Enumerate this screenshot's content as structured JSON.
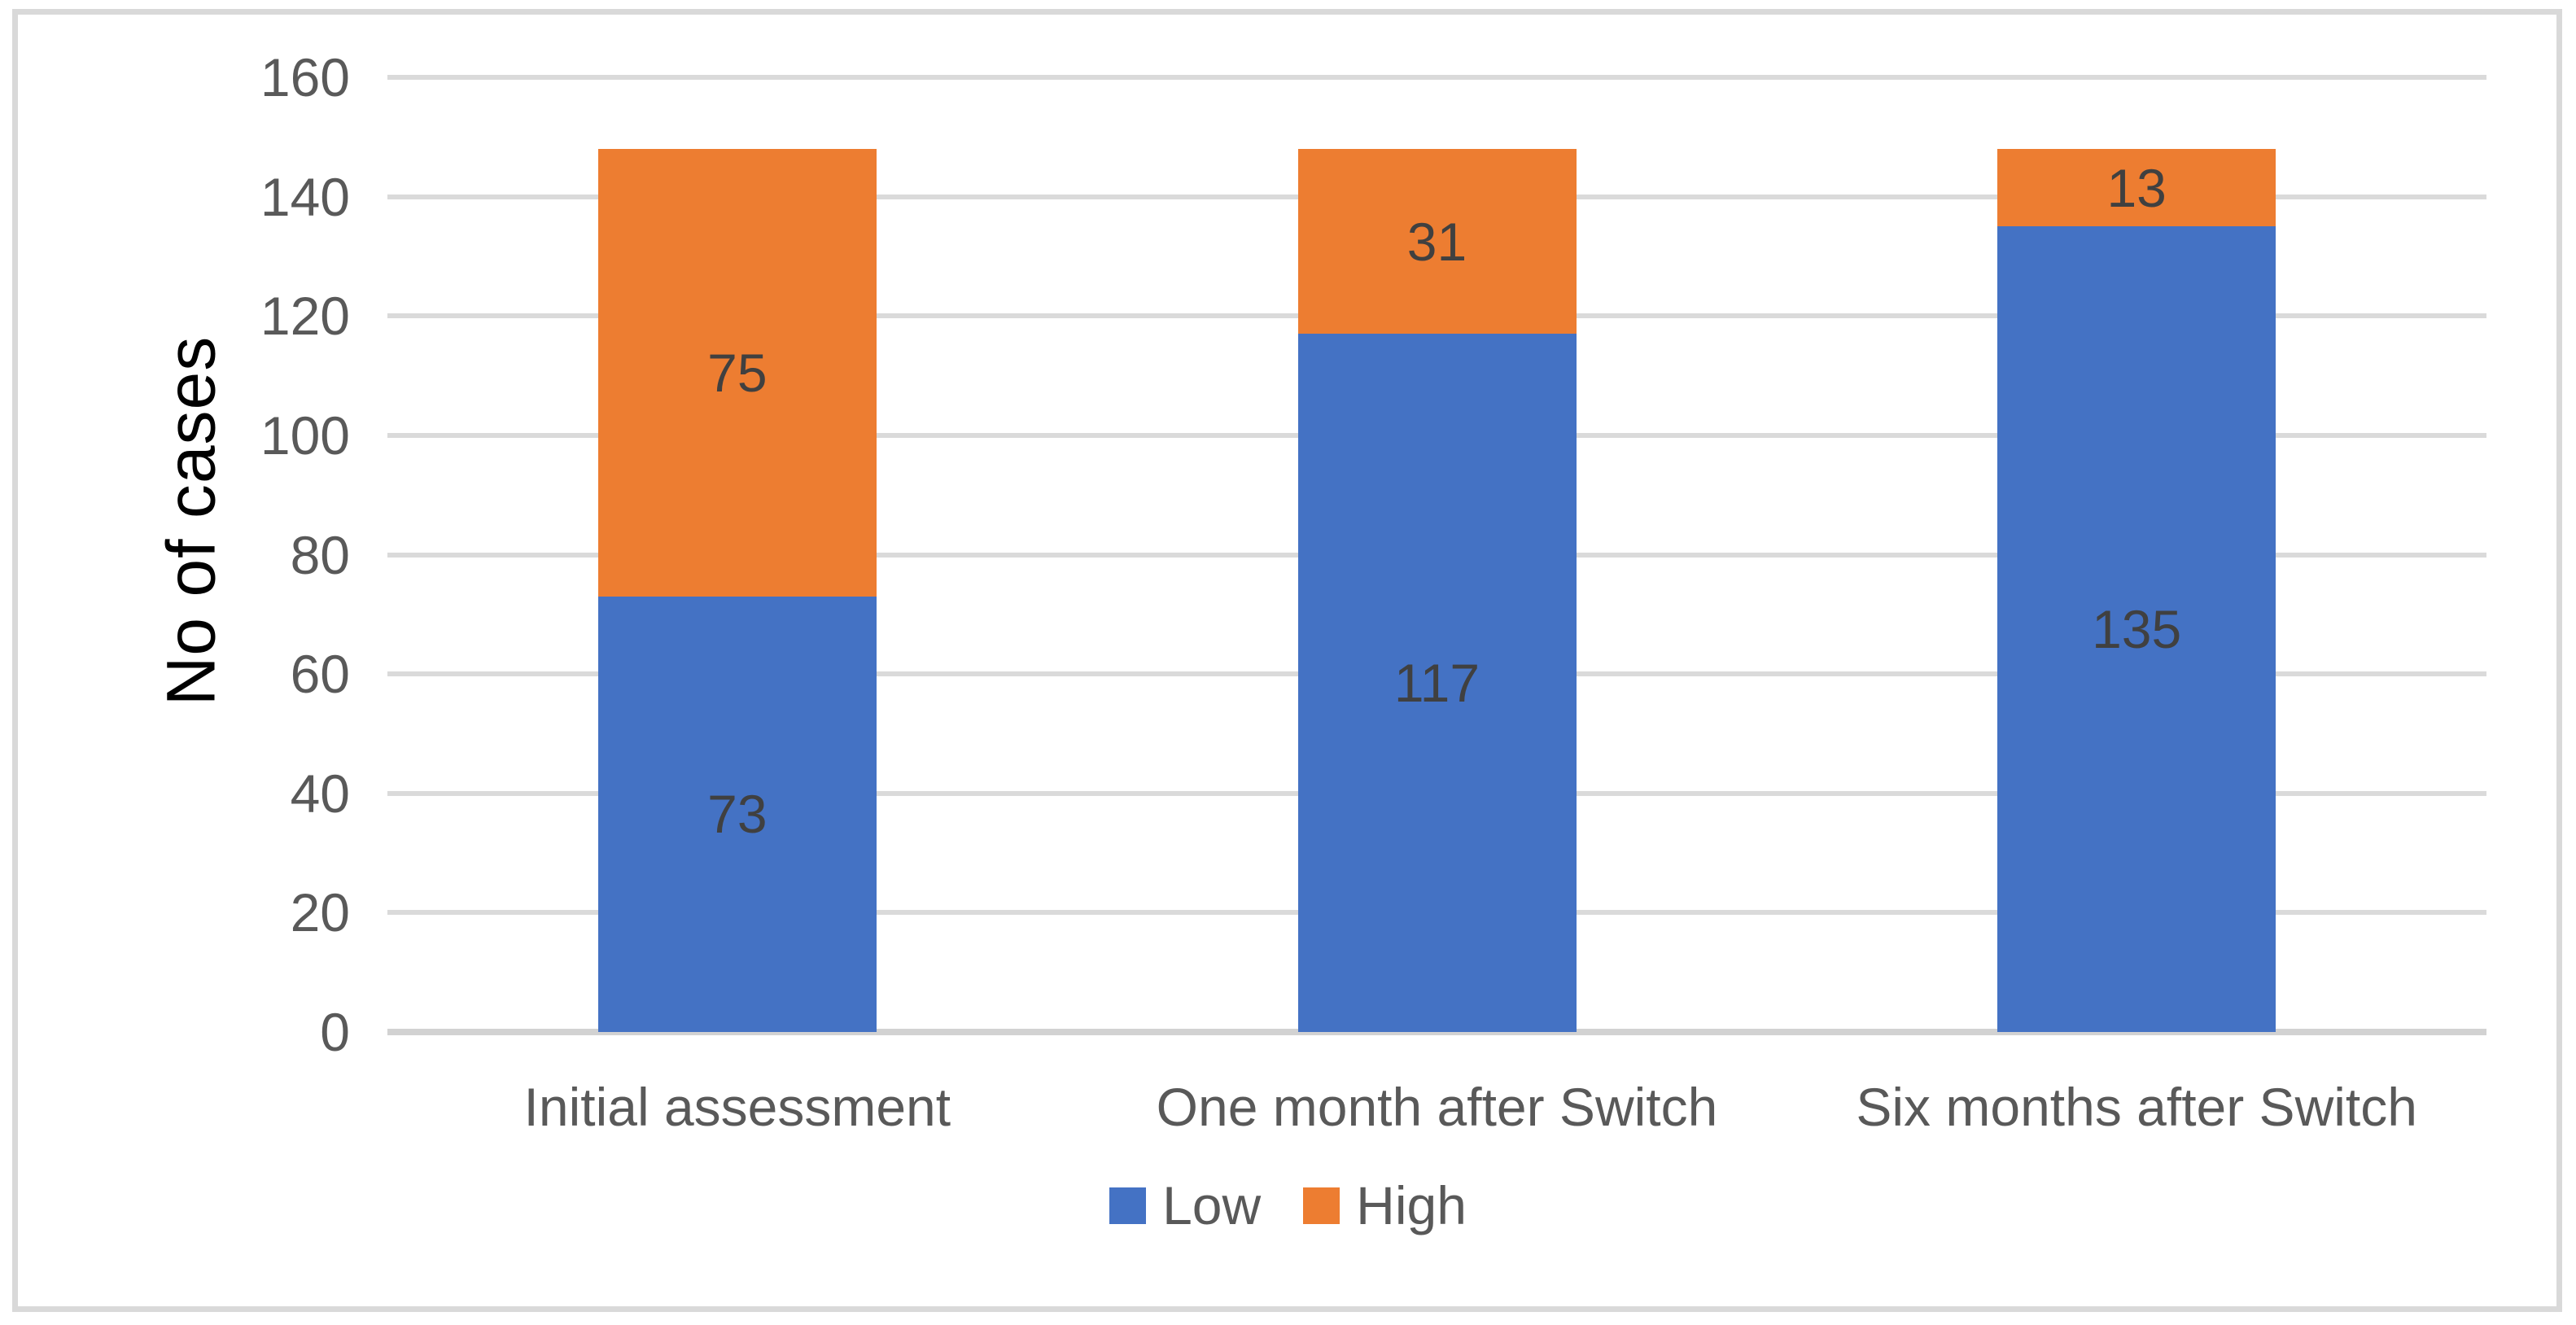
{
  "figure": {
    "background": "#FFFFFF",
    "border_color": "#D9D9D9"
  },
  "chart_data": {
    "type": "bar",
    "stacked": true,
    "title": "",
    "xlabel": "",
    "ylabel": "No of cases",
    "categories": [
      "Initial assessment",
      "One month after Switch",
      "Six months after Switch"
    ],
    "series": [
      {
        "name": "Low",
        "color": "#4472C4",
        "values": [
          73,
          117,
          135
        ]
      },
      {
        "name": "High",
        "color": "#ED7D31",
        "values": [
          75,
          31,
          13
        ]
      }
    ],
    "data_labels": {
      "Low": [
        73,
        117,
        135
      ],
      "High": [
        75,
        31,
        13
      ]
    },
    "ylim": [
      0,
      160
    ],
    "ytick_step": 20,
    "yticks": [
      0,
      20,
      40,
      60,
      80,
      100,
      120,
      140,
      160
    ],
    "grid": "horizontal",
    "gridline_color": "#DADADA",
    "axis_line_color": "#D2D2D2",
    "tick_label_color": "#595959",
    "data_label_color": "#404040",
    "legend_position": "bottom",
    "legend": [
      "Low",
      "High"
    ]
  }
}
